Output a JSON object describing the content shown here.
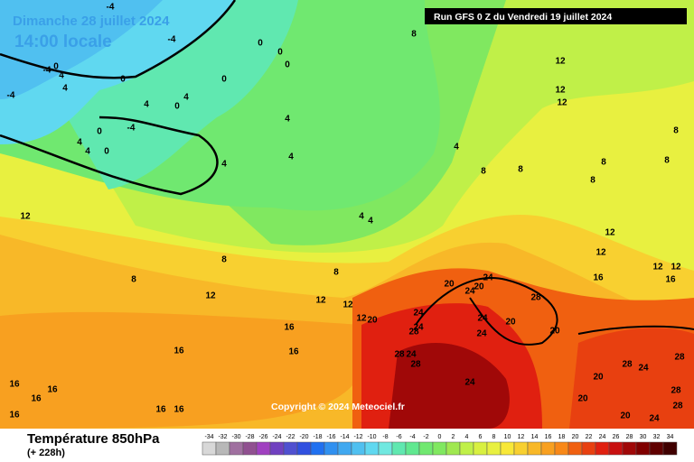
{
  "header": {
    "date": "Dimanche 28 juillet 2024",
    "time": "14:00 locale",
    "run": "Run GFS 0 Z du Vendredi 19 juillet 2024"
  },
  "copyright": "Copyright © 2024 Meteociel.fr",
  "footer": {
    "title": "Température 850hPa",
    "lead": "(+ 228h)"
  },
  "scale": {
    "values": [
      -34,
      -32,
      -30,
      -28,
      -26,
      -24,
      -22,
      -20,
      -18,
      -16,
      -14,
      -12,
      -10,
      -8,
      -6,
      -4,
      -2,
      0,
      2,
      4,
      6,
      8,
      10,
      12,
      14,
      16,
      18,
      20,
      22,
      24,
      26,
      28,
      30,
      32,
      34
    ],
    "colors": [
      "#d8d8d8",
      "#b8b8b8",
      "#a070a0",
      "#905090",
      "#a040c0",
      "#7040c0",
      "#5050d0",
      "#3050e0",
      "#2070f0",
      "#3090f0",
      "#40a8f0",
      "#50c0f0",
      "#60d8f0",
      "#70e8e0",
      "#60e8b0",
      "#60e890",
      "#70e870",
      "#80e860",
      "#a0e850",
      "#c0f048",
      "#d8f040",
      "#e8f040",
      "#f8e838",
      "#f8d030",
      "#f8b828",
      "#f8a020",
      "#f88818",
      "#f06010",
      "#e84010",
      "#e02010",
      "#c81010",
      "#a00808",
      "#800000",
      "#600000",
      "#400000"
    ]
  },
  "contours": [
    -4,
    -4,
    0,
    0,
    0,
    -4,
    0,
    4,
    0,
    0,
    4,
    4,
    0,
    4,
    -4,
    -4,
    0,
    4,
    4,
    0,
    4,
    4,
    4,
    8,
    12,
    12,
    12,
    4,
    8,
    8,
    8,
    8,
    8,
    8,
    4,
    4,
    8,
    8,
    8,
    12,
    12,
    12,
    12,
    12,
    12,
    12,
    16,
    16,
    16,
    16,
    16,
    16,
    16,
    16,
    16,
    16,
    16,
    20,
    20,
    20,
    20,
    20,
    20,
    20,
    24,
    24,
    24,
    24,
    24,
    24,
    24,
    24,
    24,
    24,
    28,
    28,
    28,
    28,
    28,
    28,
    28,
    28,
    12,
    12,
    20
  ]
}
